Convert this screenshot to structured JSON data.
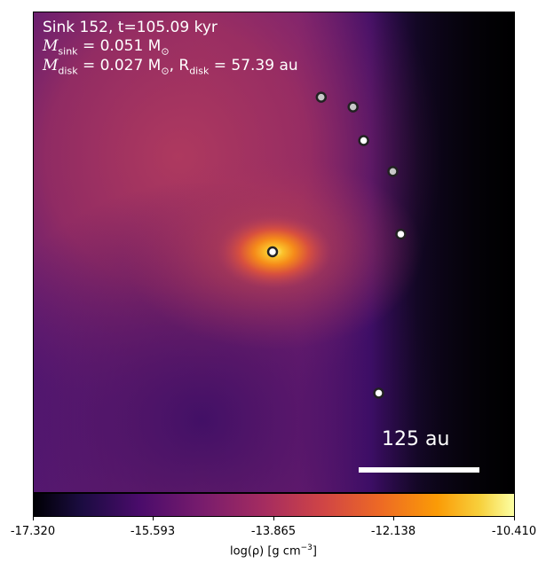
{
  "title": {
    "line1": "Sink 152, t=105.09 kyr",
    "msink_symbol": "M",
    "msink_sub": "sink",
    "msink_value": " = 0.051 M",
    "msink_unit_sub": "⊙",
    "mdisk_symbol": "M",
    "mdisk_sub": "disk",
    "mdisk_value": " = 0.027 M",
    "mdisk_unit_sub": "⊙",
    "rdisk_symbol": ", R",
    "rdisk_sub": "disk",
    "rdisk_value": " = 57.39 au"
  },
  "scalebar": {
    "label": "125 au"
  },
  "colorbar": {
    "tick_labels": [
      "-17.320",
      "-15.593",
      "-13.865",
      "-12.138",
      "-10.410"
    ],
    "label_prefix": "log(ρ) [g cm",
    "label_sup": "−3",
    "label_suffix": "]",
    "colormap": "inferno",
    "colors": [
      "#000004",
      "#1b0c41",
      "#4a0c6b",
      "#781c6d",
      "#a52c60",
      "#cf4446",
      "#ed6925",
      "#fb9b06",
      "#f7d13d",
      "#fcffa4"
    ]
  },
  "sinks": [
    {
      "id": "central-sink",
      "fill": "#ffffff"
    },
    {
      "id": "sink-a",
      "fill": "#c8c8c8"
    },
    {
      "id": "sink-b",
      "fill": "#c8c8c8"
    },
    {
      "id": "sink-c",
      "fill": "#ffffff"
    },
    {
      "id": "sink-d",
      "fill": "#c8c8c8"
    },
    {
      "id": "sink-e",
      "fill": "#ffffff"
    },
    {
      "id": "sink-f",
      "fill": "#ffffff"
    }
  ]
}
